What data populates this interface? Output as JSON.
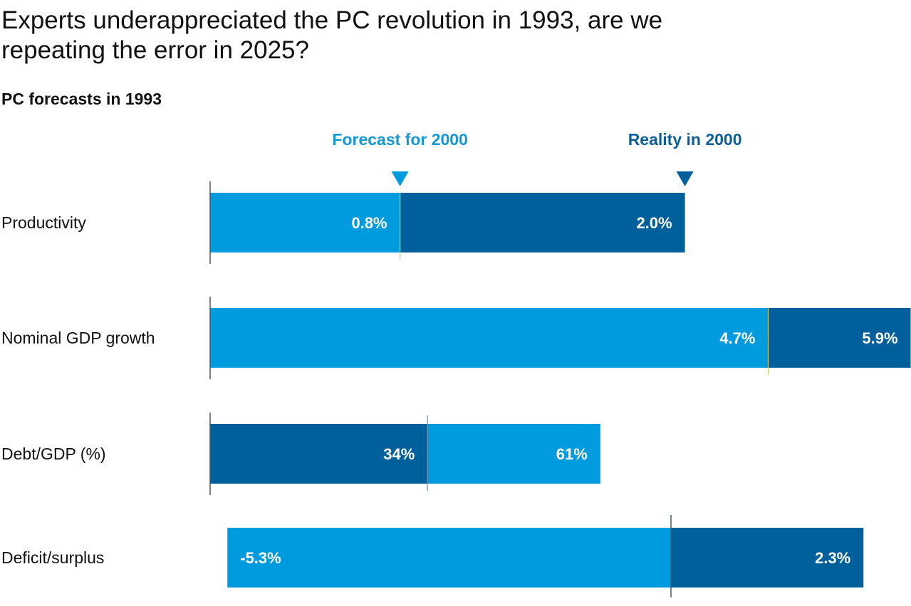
{
  "title_line1": "Experts underappreciated the PC revolution in 1993, are we",
  "title_line2": "repeating the error in 2025?",
  "subtitle": "PC forecasts in 1993",
  "legend": {
    "forecast": "Forecast for 2000",
    "reality": "Reality in 2000"
  },
  "colors": {
    "forecast": "#009ADE",
    "reality": "#00609C",
    "forecast_text": "#1499D6",
    "reality_text": "#0B5F99"
  },
  "chart_data": {
    "type": "bar",
    "orientation": "horizontal",
    "title": "Experts underappreciated the PC revolution in 1993, are we repeating the error in 2025?",
    "subtitle": "PC forecasts in 1993",
    "series_names": [
      "Forecast for 2000",
      "Reality in 2000"
    ],
    "rows": [
      {
        "category": "Productivity",
        "forecast": 0.8,
        "reality": 2.0,
        "forecast_label": "0.8%",
        "reality_label": "2.0%"
      },
      {
        "category": "Nominal GDP growth",
        "forecast": 4.7,
        "reality": 5.9,
        "forecast_label": "4.7%",
        "reality_label": "5.9%"
      },
      {
        "category": "Debt/GDP (%)",
        "forecast": 61,
        "reality": 34,
        "forecast_label": "61%",
        "reality_label": "34%"
      },
      {
        "category": "Deficit/surplus",
        "forecast": -5.3,
        "reality": 2.3,
        "forecast_label": "-5.3%",
        "reality_label": "2.3%"
      }
    ],
    "grid": false,
    "legend_placement": "top"
  }
}
